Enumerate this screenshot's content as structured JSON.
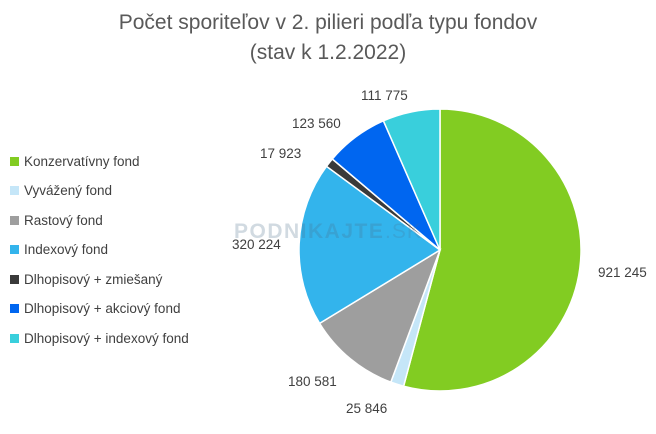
{
  "chart_data": {
    "type": "pie",
    "title": "Počet sporiteľov v 2. pilieri podľa typu fondov",
    "subtitle": "(stav k 1.2.2022)",
    "legend_position": "left",
    "slices": [
      {
        "label": "Konzervatívny fond",
        "value": 921245,
        "value_text": "921 245",
        "color": "#82cc22"
      },
      {
        "label": "Vyvážený fond",
        "value": 25846,
        "value_text": "25 846",
        "color": "#c5e6f8"
      },
      {
        "label": "Rastový fond",
        "value": 180581,
        "value_text": "180 581",
        "color": "#9e9e9e"
      },
      {
        "label": "Indexový fond",
        "value": 320224,
        "value_text": "320 224",
        "color": "#33b4ec"
      },
      {
        "label": "Dlhopisový + zmiešaný",
        "value": 17923,
        "value_text": "17 923",
        "color": "#3a3a3a"
      },
      {
        "label": "Dlhopisový + akciový fond",
        "value": 123560,
        "value_text": "123 560",
        "color": "#0066f0"
      },
      {
        "label": "Dlhopisový + indexový fond",
        "value": 111775,
        "value_text": "111 775",
        "color": "#39cfdc"
      }
    ]
  },
  "watermark": {
    "bold": "PODNIKAJTE",
    "thin": ".SK"
  }
}
